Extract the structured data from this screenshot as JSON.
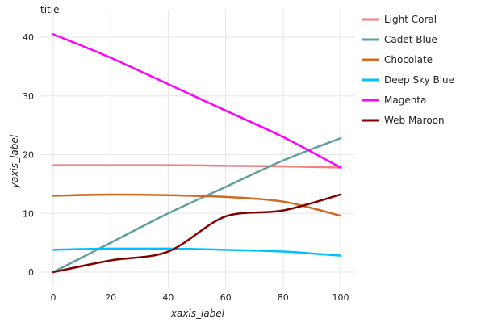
{
  "chart_data": {
    "type": "line",
    "title": "title",
    "xlabel": "xaxis_label",
    "ylabel": "yaxis_label",
    "x": [
      0,
      20,
      40,
      60,
      80,
      100
    ],
    "xlim": [
      0,
      100
    ],
    "ylim": [
      0,
      42
    ],
    "x_ticks": [
      "0",
      "20",
      "40",
      "60",
      "80",
      "100"
    ],
    "y_ticks": [
      "0",
      "10",
      "20",
      "30",
      "40"
    ],
    "grid": true,
    "legend_position": "right",
    "series": [
      {
        "name": "Light Coral",
        "color": "#f08080",
        "values": [
          18.2,
          18.2,
          18.2,
          18.1,
          18.0,
          17.8
        ]
      },
      {
        "name": "Cadet Blue",
        "color": "#5f9ea0",
        "values": [
          0.0,
          5.0,
          10.0,
          14.5,
          19.0,
          22.8
        ]
      },
      {
        "name": "Chocolate",
        "color": "#d2691e",
        "values": [
          13.0,
          13.2,
          13.1,
          12.8,
          12.0,
          9.6
        ]
      },
      {
        "name": "Deep Sky Blue",
        "color": "#00bfff",
        "values": [
          3.8,
          4.0,
          4.0,
          3.8,
          3.5,
          2.8
        ]
      },
      {
        "name": "Magenta",
        "color": "#ff00ff",
        "values": [
          40.5,
          36.5,
          32.0,
          27.5,
          23.0,
          17.8
        ]
      },
      {
        "name": "Web Maroon",
        "color": "#800000",
        "values": [
          0.0,
          2.0,
          3.5,
          9.5,
          10.5,
          13.2
        ]
      }
    ]
  }
}
